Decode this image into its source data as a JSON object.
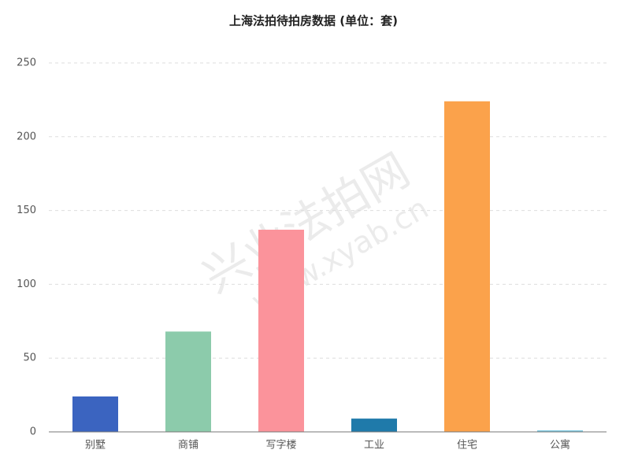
{
  "chart_data": {
    "type": "bar",
    "title": "上海法拍待拍房数据 (单位：套)",
    "categories": [
      "别墅",
      "商铺",
      "写字楼",
      "工业",
      "住宅",
      "公寓"
    ],
    "values": [
      24,
      68,
      137,
      9,
      224,
      1
    ],
    "colors": [
      "#3b64c0",
      "#8ccbab",
      "#fb939b",
      "#1f7aaa",
      "#fba24b",
      "#75c5df"
    ],
    "ylim": [
      0,
      250
    ],
    "yticks": [
      0,
      50,
      100,
      150,
      200,
      250
    ],
    "grid": true
  },
  "watermark": {
    "line1": "兴业法拍网",
    "line2": "www.xyab.cn"
  }
}
